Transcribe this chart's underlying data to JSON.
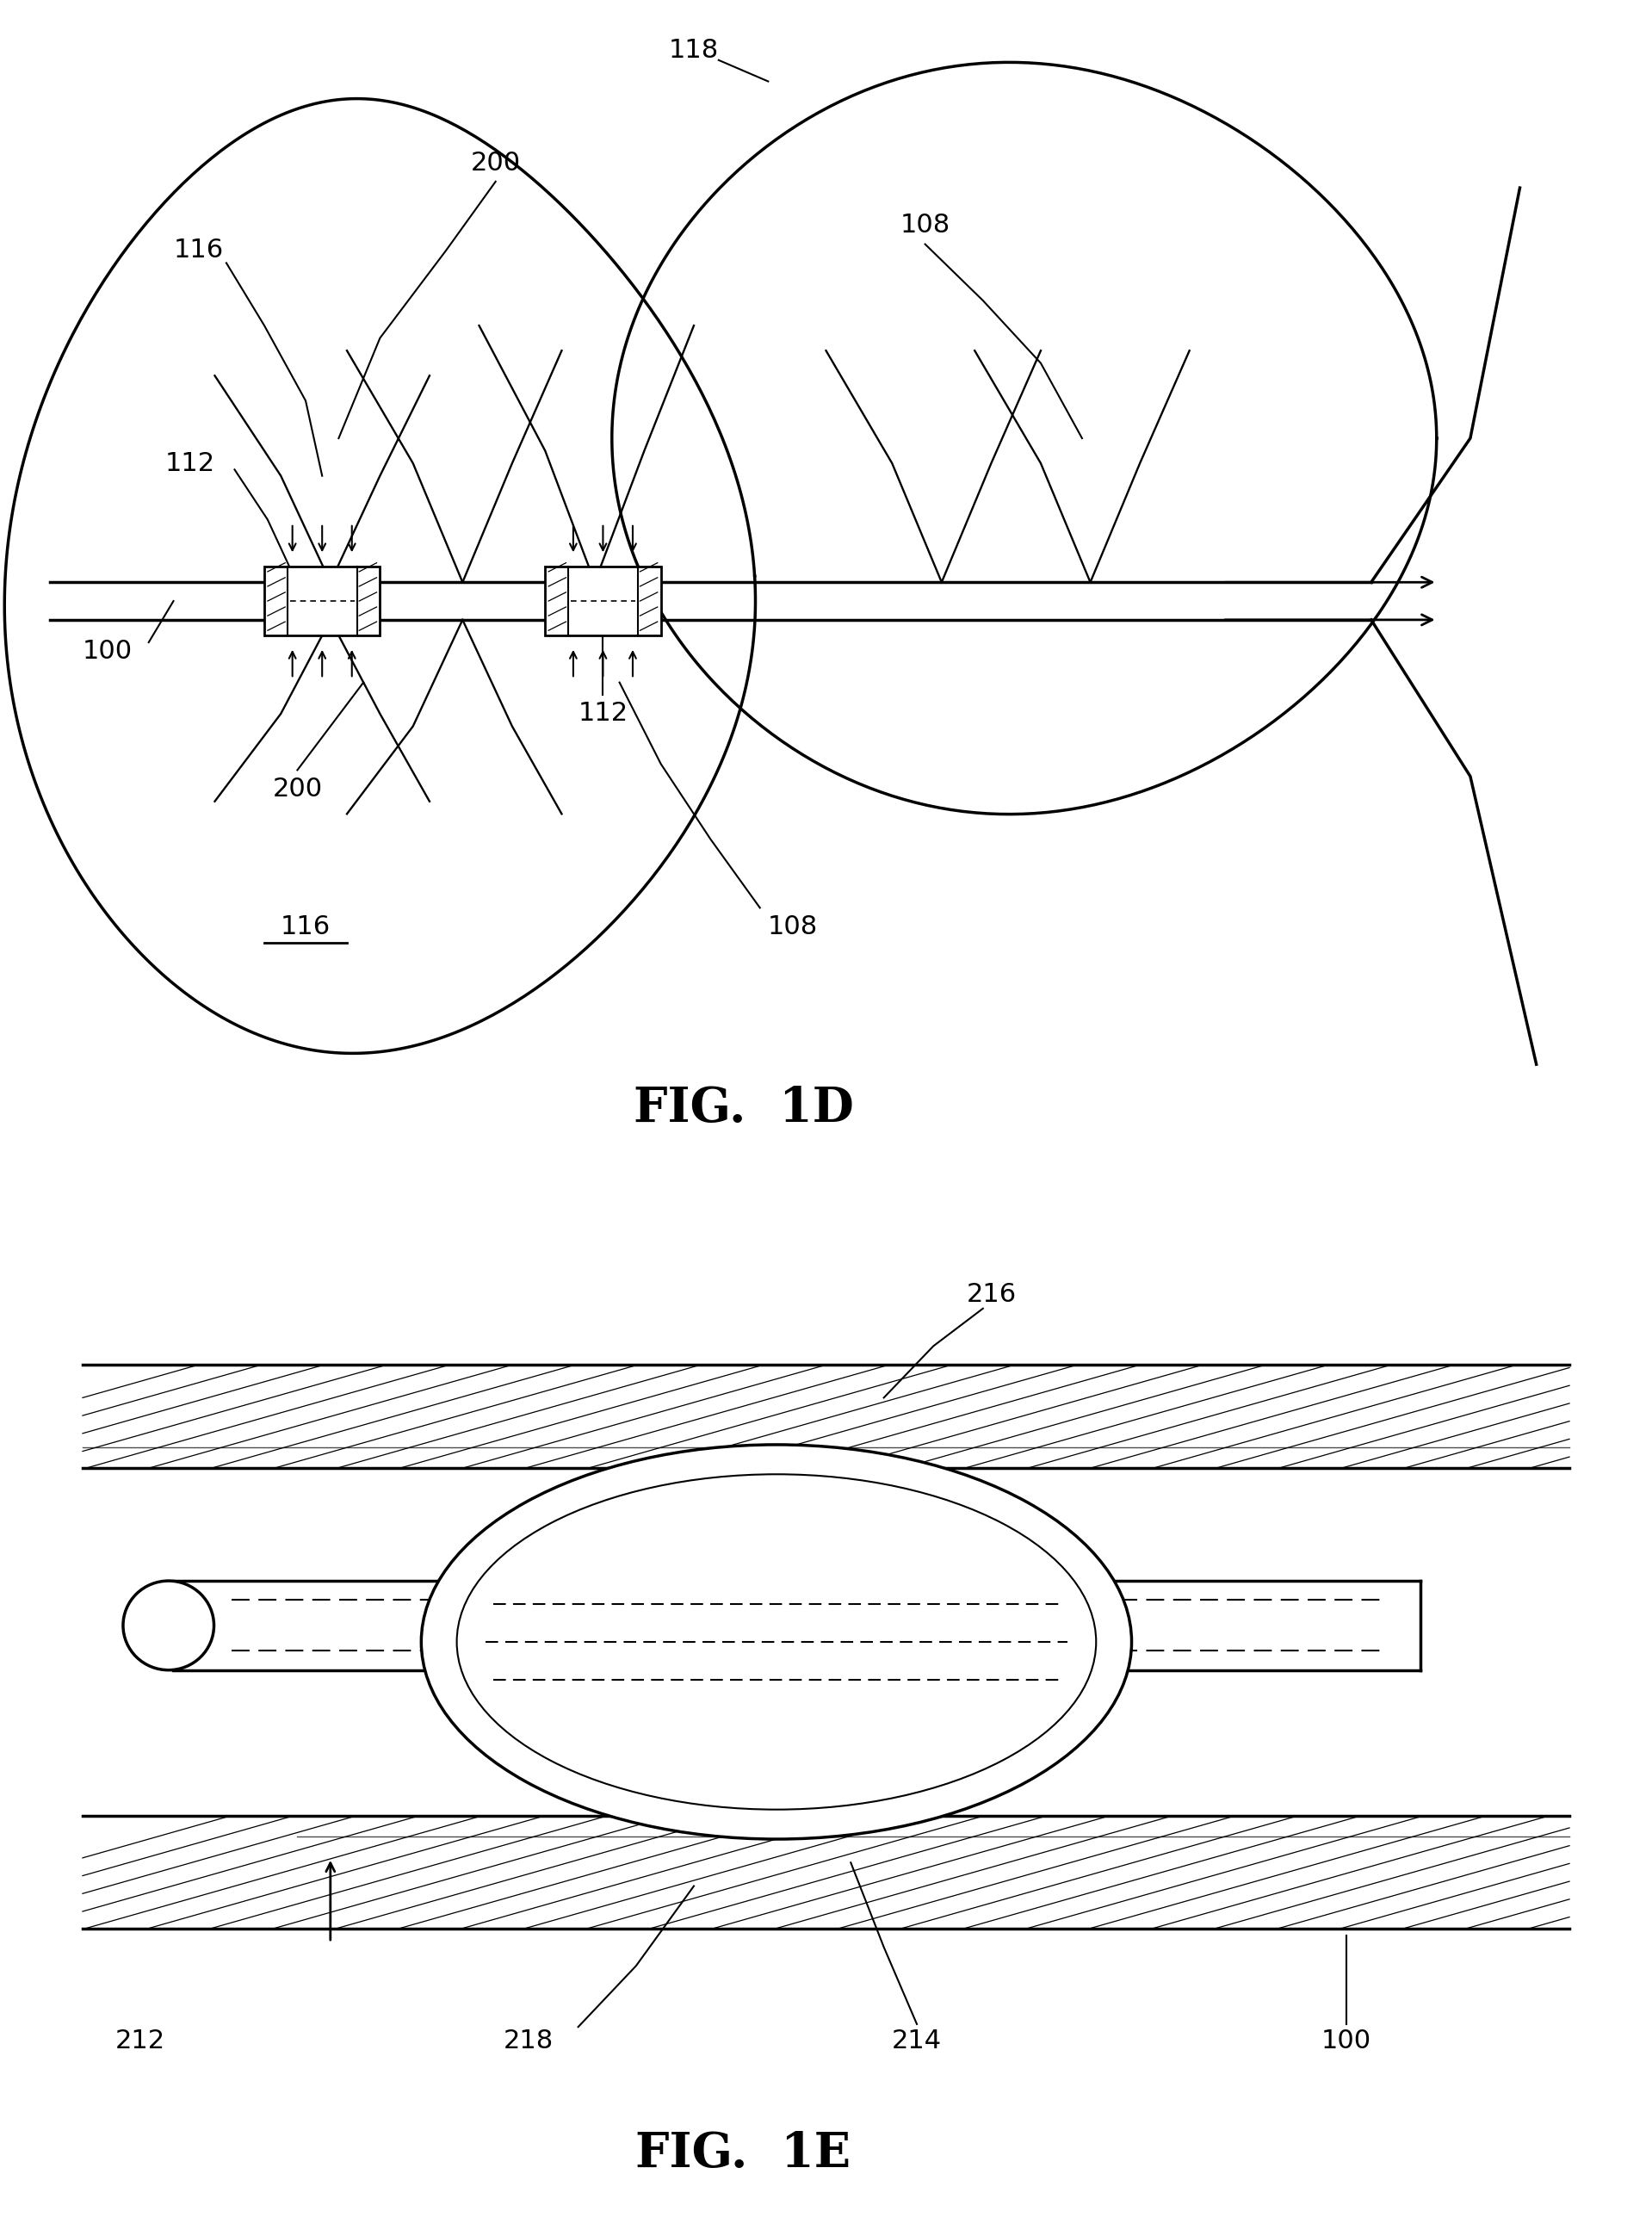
{
  "fig_width": 19.19,
  "fig_height": 25.97,
  "bg_color": "#ffffff",
  "line_color": "#000000",
  "fig1d_title": "FIG.  1D",
  "fig1e_title": "FIG.  1E",
  "label_fontsize": 22,
  "title_fontsize": 40,
  "lw_main": 2.5
}
